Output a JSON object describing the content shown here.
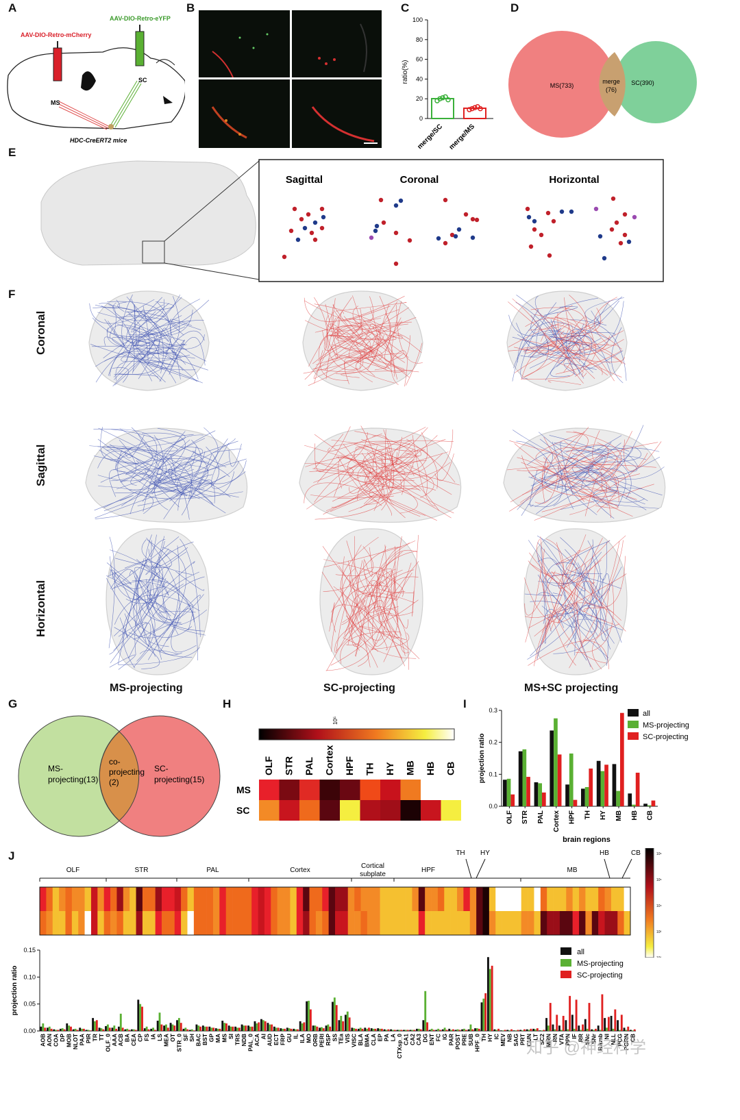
{
  "panels": {
    "A": "A",
    "B": "B",
    "C": "C",
    "D": "D",
    "E": "E",
    "F": "F",
    "G": "G",
    "H": "H",
    "I": "I",
    "J": "J"
  },
  "panelA": {
    "left_virus": "AAV-DIO-Retro-mCherry",
    "right_virus": "AAV-DIO-Retro-eYFP",
    "ms": "MS",
    "sc": "SC",
    "mice": "HDC-CreERT2 mice"
  },
  "panelC": {
    "ylabel": "ratio(%)",
    "yticks": [
      "100",
      "80",
      "60",
      "40",
      "20",
      "0"
    ],
    "cat1": "merge/SC",
    "cat2": "merge/MS"
  },
  "panelD": {
    "ms": "MS(733)",
    "merge1": "merge",
    "merge2": "(76)",
    "sc": "SC(390)"
  },
  "panelE": {
    "sagittal": "Sagittal",
    "coronal": "Coronal",
    "horizontal": "Horizontal"
  },
  "panelF": {
    "row1": "Coronal",
    "row2": "Sagittal",
    "row3": "Horizontal",
    "col1": "MS-projecting",
    "col2": "SC-projecting",
    "col3": "MS+SC projecting"
  },
  "panelG": {
    "ms1": "MS-",
    "ms2": "projecting(13)",
    "co1": "co-",
    "co2": "projecting",
    "co3": "(2)",
    "sc1": "SC-",
    "sc2": "projecting(15)"
  },
  "panelH": {
    "scale": "10⁵",
    "regions": [
      "OLF",
      "STR",
      "PAL",
      "Cortex",
      "HPF",
      "TH",
      "HY",
      "MB",
      "HB",
      "CB"
    ],
    "rows": [
      "MS",
      "SC"
    ],
    "ms_colors": [
      "#e8202a",
      "#7a0a12",
      "#e02a24",
      "#3c0408",
      "#6a0812",
      "#f04a18",
      "#c8121c",
      "#f07a20",
      "#ffffff",
      "#ffffff"
    ],
    "sc_colors": [
      "#f38a26",
      "#c8151e",
      "#ef6a1c",
      "#5a0610",
      "#f5ee40",
      "#b0101a",
      "#a00e18",
      "#1c0204",
      "#c8151e",
      "#f5ee40"
    ]
  },
  "chart_data": [
    {
      "type": "scatter",
      "title": "",
      "xlabel": "",
      "ylabel": "ratio(%)",
      "ylim": [
        0,
        100
      ],
      "categories": [
        "merge/SC",
        "merge/MS"
      ],
      "series": [
        {
          "name": "merge/SC",
          "mean": 20,
          "points": [
            18,
            20,
            21,
            22,
            19
          ]
        },
        {
          "name": "merge/MS",
          "mean": 10,
          "points": [
            9,
            10,
            11,
            12,
            10
          ]
        }
      ]
    },
    {
      "type": "bar",
      "title": "",
      "xlabel": "brain regions",
      "ylabel": "projection ratio",
      "ylim": [
        0,
        0.3
      ],
      "yticks": [
        "0.3",
        "0.2",
        "0.1",
        "0.0"
      ],
      "categories": [
        "OLF",
        "STR",
        "PAL",
        "Cortex",
        "HPF",
        "TH",
        "HY",
        "MB",
        "HB",
        "CB"
      ],
      "series": [
        {
          "name": "all",
          "color": "#111111",
          "values": [
            0.083,
            0.172,
            0.075,
            0.237,
            0.068,
            0.055,
            0.142,
            0.132,
            0.04,
            0.008
          ]
        },
        {
          "name": "MS-projecting",
          "color": "#5ab033",
          "values": [
            0.086,
            0.178,
            0.072,
            0.275,
            0.165,
            0.06,
            0.11,
            0.048,
            0.005,
            0.003
          ]
        },
        {
          "name": "SC-projecting",
          "color": "#e02020",
          "values": [
            0.037,
            0.092,
            0.043,
            0.162,
            0.02,
            0.118,
            0.13,
            0.292,
            0.105,
            0.018
          ]
        }
      ]
    },
    {
      "type": "bar",
      "title": "",
      "xlabel": "",
      "ylabel": "projection ratio",
      "ylim": [
        0,
        0.15
      ],
      "yticks": [
        "0.15",
        "0.10",
        "0.05",
        "0.00"
      ],
      "categories": [
        "AOB",
        "AON",
        "COA",
        "DP",
        "MOB",
        "NLOT",
        "PAA",
        "PIR",
        "TR",
        "TT",
        "OLF_0",
        "AAA",
        "ACB",
        "BA",
        "CEA",
        "CP",
        "FS",
        "IA",
        "LS",
        "MEA",
        "OT",
        "STR_0",
        "SF",
        "SH",
        "BAC",
        "BST",
        "GP",
        "MA",
        "MS",
        "SI",
        "TRS",
        "NDB",
        "PAL_0",
        "ACA",
        "AI",
        "AUD",
        "ECT",
        "FRP",
        "GU",
        "IL",
        "ILA",
        "MO",
        "ORB",
        "PERI",
        "RSP",
        "SS",
        "TEa",
        "VIS",
        "VISC",
        "BLA",
        "BMA",
        "CLA",
        "EP",
        "PA",
        "LA",
        "CTXsp_0",
        "CA1",
        "CA2",
        "CA3",
        "DG",
        "ENT",
        "FC",
        "IG",
        "PAR",
        "POST",
        "PRE",
        "SUB",
        "HPF_0",
        "TH",
        "HY",
        "IC",
        "MEV",
        "NB",
        "SAG",
        "PRT",
        "CUN",
        "LT",
        "SC2",
        "MRN",
        "RN",
        "VTA",
        "PPN",
        "IF",
        "RR",
        "SNc",
        "SNr",
        "RAmb",
        "NI",
        "NLL",
        "PCG",
        "PGRN",
        "CB"
      ],
      "series": [
        {
          "name": "all",
          "color": "#111111",
          "values": [
            0.008,
            0.006,
            0.003,
            0.004,
            0.014,
            0.003,
            0.006,
            0.002,
            0.024,
            0.006,
            0.009,
            0.006,
            0.008,
            0.003,
            0.003,
            0.058,
            0.005,
            0.004,
            0.019,
            0.01,
            0.015,
            0.02,
            0.004,
            0.002,
            0.012,
            0.01,
            0.008,
            0.005,
            0.019,
            0.01,
            0.008,
            0.012,
            0.01,
            0.018,
            0.022,
            0.015,
            0.008,
            0.005,
            0.006,
            0.004,
            0.018,
            0.055,
            0.01,
            0.006,
            0.01,
            0.054,
            0.02,
            0.03,
            0.006,
            0.004,
            0.006,
            0.005,
            0.005,
            0.003,
            0.003,
            0.002,
            0.002,
            0.002,
            0.004,
            0.02,
            0.002,
            0.002,
            0.003,
            0.004,
            0.002,
            0.003,
            0.003,
            0.005,
            0.053,
            0.137,
            0.003,
            0.001,
            0.002,
            0.001,
            0.002,
            0.003,
            0.004,
            0.001,
            0.024,
            0.012,
            0.01,
            0.02,
            0.03,
            0.01,
            0.022,
            0.003,
            0.01,
            0.024,
            0.028,
            0.02,
            0.006,
            0.002
          ]
        },
        {
          "name": "MS-projecting",
          "color": "#5ab033",
          "values": [
            0.014,
            0.008,
            0.002,
            0.005,
            0.01,
            0.004,
            0.004,
            0.002,
            0.018,
            0.005,
            0.012,
            0.01,
            0.032,
            0.004,
            0.003,
            0.05,
            0.008,
            0.006,
            0.034,
            0.012,
            0.012,
            0.024,
            0.006,
            0.003,
            0.01,
            0.008,
            0.006,
            0.004,
            0.015,
            0.008,
            0.006,
            0.01,
            0.008,
            0.014,
            0.02,
            0.012,
            0.006,
            0.004,
            0.005,
            0.003,
            0.014,
            0.056,
            0.01,
            0.007,
            0.012,
            0.062,
            0.028,
            0.036,
            0.005,
            0.006,
            0.004,
            0.004,
            0.004,
            0.002,
            0.002,
            0.002,
            0.002,
            0.002,
            0.004,
            0.074,
            0.004,
            0.004,
            0.006,
            0.002,
            0.003,
            0.004,
            0.012,
            0.005,
            0.06,
            0.115,
            0.002,
            0.001,
            0.001,
            0.001,
            0.001,
            0.002,
            0.003,
            0.001,
            0.01,
            0.003,
            0.002,
            0.003,
            0.004,
            0.002,
            0.004,
            0.002,
            0.002,
            0.006,
            0.004,
            0.002,
            0.002,
            0.001
          ]
        },
        {
          "name": "SC-projecting",
          "color": "#e02020",
          "values": [
            0.006,
            0.004,
            0.002,
            0.003,
            0.008,
            0.002,
            0.004,
            0.001,
            0.02,
            0.003,
            0.006,
            0.004,
            0.006,
            0.002,
            0.002,
            0.045,
            0.003,
            0.002,
            0.012,
            0.006,
            0.01,
            0.015,
            0.003,
            0.001,
            0.008,
            0.008,
            0.006,
            0.004,
            0.014,
            0.008,
            0.006,
            0.01,
            0.008,
            0.016,
            0.018,
            0.012,
            0.006,
            0.004,
            0.004,
            0.003,
            0.016,
            0.04,
            0.008,
            0.005,
            0.008,
            0.048,
            0.018,
            0.025,
            0.004,
            0.004,
            0.006,
            0.004,
            0.004,
            0.003,
            0.002,
            0.002,
            0.002,
            0.002,
            0.003,
            0.016,
            0.002,
            0.002,
            0.002,
            0.003,
            0.002,
            0.002,
            0.003,
            0.004,
            0.07,
            0.121,
            0.004,
            0.002,
            0.003,
            0.002,
            0.003,
            0.004,
            0.005,
            0.002,
            0.052,
            0.03,
            0.028,
            0.065,
            0.058,
            0.012,
            0.052,
            0.004,
            0.068,
            0.026,
            0.04,
            0.03,
            0.008,
            0.003
          ]
        }
      ]
    }
  ],
  "panelI_legend": [
    "all",
    "MS-projecting",
    "SC-projecting"
  ],
  "panelJ": {
    "groups": [
      "OLF",
      "STR",
      "PAL",
      "Cortex",
      "Cortical subplate",
      "HPF",
      "TH",
      "HY",
      "MB",
      "HB",
      "CB"
    ],
    "sub1": "Cortical",
    "sub2": "subplate",
    "legend": [
      "all",
      "MS-projecting",
      "SC-projecting"
    ],
    "scale": [
      "10⁶",
      "10⁵",
      "10⁴",
      "10³",
      "10²"
    ],
    "watermark": "知乎 @神经科学"
  },
  "colors": {
    "red": "#e02020",
    "green": "#5ab033",
    "blue": "#2a3f9a",
    "ms_venn": "#f08080",
    "sc_venn": "#7fd09a"
  }
}
